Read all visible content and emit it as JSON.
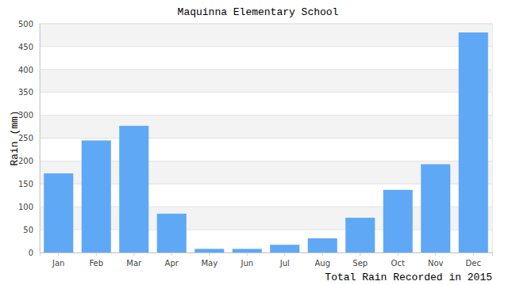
{
  "chart_data": {
    "type": "bar",
    "title": "Maquinna Elementary School",
    "x_label": "Total Rain Recorded in 2015",
    "y_label": "Rain (mm)",
    "categories": [
      "Jan",
      "Feb",
      "Mar",
      "Apr",
      "May",
      "Jun",
      "Jul",
      "Aug",
      "Sep",
      "Oct",
      "Nov",
      "Dec"
    ],
    "values": [
      173,
      245,
      277,
      85,
      8,
      8,
      17,
      31,
      76,
      137,
      193,
      481
    ],
    "color": "#5fa8f6",
    "ylim": [
      0,
      500
    ],
    "yticks": [
      0,
      50,
      100,
      150,
      200,
      250,
      300,
      350,
      400,
      450,
      500
    ],
    "grid": true
  }
}
